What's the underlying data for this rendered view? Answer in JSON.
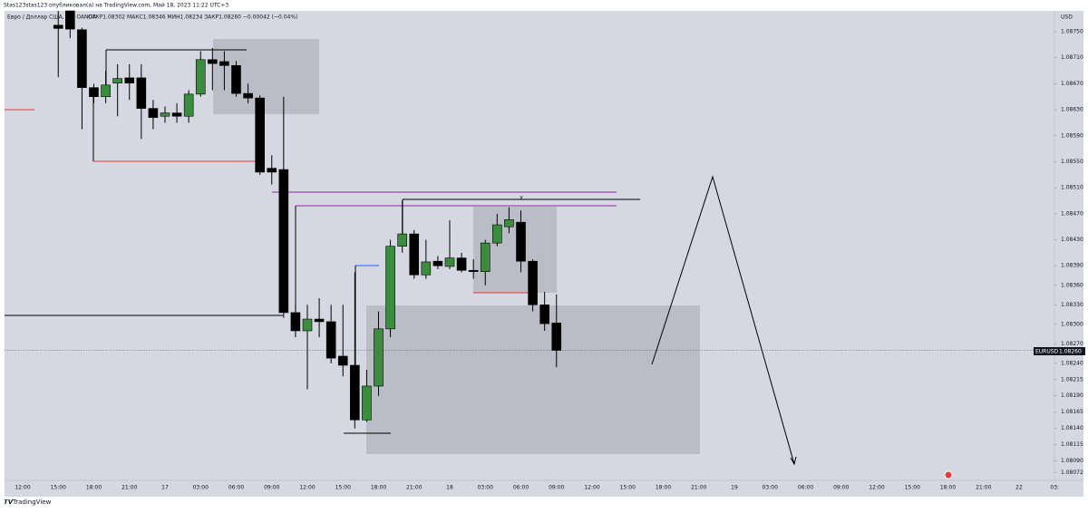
{
  "chart_data": {
    "type": "candlestick",
    "header": "Stas123stas123 опубликовал(а) на TradingView.com, Май 18, 2023 11:22 UTC+3",
    "title": "Евро / Доллар США, 1Ч, OANDA",
    "ohlc_text": "ОТКР1.08302  МАКС1.08346  МИН1.08234  ЗАКР1.08260  −0.00042 (−0.04%)",
    "currency": "USD",
    "symbol": "EURUSD",
    "price_label": "1.08260",
    "annotation": "X",
    "footer": "TradingView",
    "up_color": "#3c8c40",
    "down_color": "#000000",
    "ylim": [
      1.0806,
      1.08782
    ],
    "yticks": [
      {
        "value": 1.0875,
        "label": "1.08750"
      },
      {
        "value": 1.0871,
        "label": "1.08710"
      },
      {
        "value": 1.0867,
        "label": "1.08670"
      },
      {
        "value": 1.0863,
        "label": "1.08630"
      },
      {
        "value": 1.0859,
        "label": "1.08590"
      },
      {
        "value": 1.0855,
        "label": "1.08550"
      },
      {
        "value": 1.0851,
        "label": "1.08510"
      },
      {
        "value": 1.0847,
        "label": "1.08470"
      },
      {
        "value": 1.0843,
        "label": "1.08430"
      },
      {
        "value": 1.0839,
        "label": "1.08390"
      },
      {
        "value": 1.0836,
        "label": "1.08360"
      },
      {
        "value": 1.0833,
        "label": "1.08330"
      },
      {
        "value": 1.083,
        "label": "1.08300"
      },
      {
        "value": 1.0827,
        "label": "1.08270"
      },
      {
        "value": 1.0824,
        "label": "1.08240"
      },
      1.08215,
      {
        "value": 1.0819,
        "label": "1.08190"
      },
      1.08165,
      {
        "value": 1.0814,
        "label": "1.08140"
      },
      1.08115,
      {
        "value": 1.0809,
        "label": "1.08090"
      },
      1.08072
    ],
    "xtick_labels": [
      "12:00",
      "15:00",
      "18:00",
      "21:00",
      "17",
      "03:00",
      "06:00",
      "09:00",
      "12:00",
      "15:00",
      "18:00",
      "21:00",
      "18",
      "03:00",
      "06:00",
      "09:00",
      "12:00",
      "15:00",
      "18:00",
      "21:00",
      "19",
      "03:00",
      "06:00",
      "09:00",
      "12:00",
      "15:00",
      "18:00",
      "21:00",
      "22",
      "03:"
    ],
    "series": {
      "open": [
        1.0876,
        1.08782,
        1.08753,
        1.08664,
        1.0865,
        1.08671,
        1.08679,
        1.08679,
        1.08632,
        1.0862,
        1.08625,
        1.0862,
        1.08654,
        1.08707,
        1.08704,
        1.08698,
        1.08655,
        1.08648,
        1.0854,
        1.08538,
        1.08318,
        1.0829,
        1.08308,
        1.08304,
        1.08251,
        1.08237,
        1.08153,
        1.08205,
        1.08293,
        1.0842,
        1.08439,
        1.08376,
        1.08397,
        1.08389,
        1.08402,
        1.08383,
        1.08381,
        1.08425,
        1.0845,
        1.08457,
        1.08397,
        1.0833,
        1.08302
      ],
      "high": [
        1.08782,
        1.08782,
        1.08756,
        1.0867,
        1.0869,
        1.087,
        1.087,
        1.087,
        1.08645,
        1.08635,
        1.0864,
        1.0866,
        1.0872,
        1.08725,
        1.0872,
        1.08705,
        1.0867,
        1.08652,
        1.0856,
        1.0865,
        1.0833,
        1.0833,
        1.0834,
        1.0833,
        1.0833,
        1.0838,
        1.0823,
        1.0832,
        1.0843,
        1.0849,
        1.08445,
        1.0843,
        1.08405,
        1.0846,
        1.0841,
        1.084,
        1.0843,
        1.0847,
        1.0848,
        1.08475,
        1.084,
        1.0835,
        1.08346
      ],
      "low": [
        1.0868,
        1.0874,
        1.086,
        1.0864,
        1.0864,
        1.0862,
        1.08645,
        1.08585,
        1.086,
        1.0861,
        1.0861,
        1.0861,
        1.0865,
        1.0866,
        1.0866,
        1.0865,
        1.0864,
        1.0853,
        1.08515,
        1.0831,
        1.0828,
        1.082,
        1.0828,
        1.0824,
        1.0822,
        1.0814,
        1.0815,
        1.0819,
        1.0828,
        1.0841,
        1.0837,
        1.0837,
        1.08385,
        1.08385,
        1.0838,
        1.0837,
        1.0836,
        1.0842,
        1.0844,
        1.0838,
        1.0832,
        1.0829,
        1.08234
      ],
      "close": [
        1.08755,
        1.08754,
        1.08664,
        1.0865,
        1.08668,
        1.08678,
        1.08671,
        1.08632,
        1.08618,
        1.08625,
        1.0862,
        1.08654,
        1.08707,
        1.08701,
        1.08698,
        1.08655,
        1.08648,
        1.08534,
        1.08534,
        1.08318,
        1.0829,
        1.08308,
        1.08304,
        1.08248,
        1.08237,
        1.08153,
        1.08205,
        1.08293,
        1.0842,
        1.08439,
        1.08376,
        1.08396,
        1.0839,
        1.08402,
        1.08383,
        1.08381,
        1.08425,
        1.08453,
        1.08461,
        1.08397,
        1.0833,
        1.08301,
        1.0826
      ]
    }
  }
}
